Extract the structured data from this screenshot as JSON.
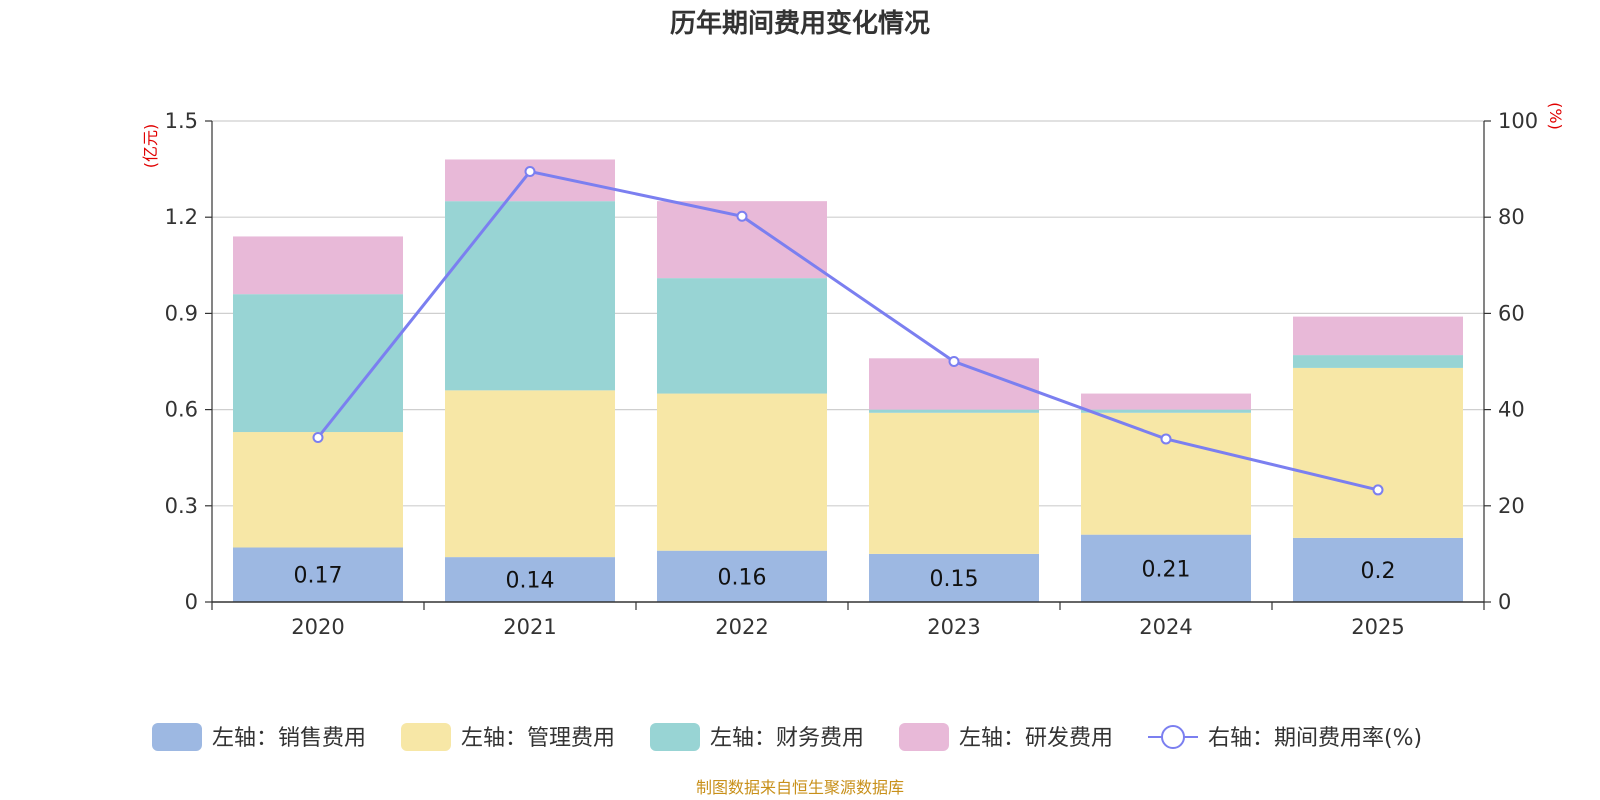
{
  "chart_data": {
    "type": "bar",
    "title": "历年期间费用变化情况",
    "categories": [
      "2020",
      "2021",
      "2022",
      "2023",
      "2024",
      "2025"
    ],
    "left_axis": {
      "unit": "(亿元)",
      "ylim": [
        0,
        1.5
      ],
      "ticks": [
        "0",
        "0.3",
        "0.6",
        "0.9",
        "1.2",
        "1.5"
      ],
      "tick_values": [
        0,
        0.3,
        0.6,
        0.9,
        1.2,
        1.5
      ]
    },
    "right_axis": {
      "unit": "(%)",
      "ylim": [
        0,
        100
      ],
      "ticks": [
        "0",
        "20",
        "40",
        "60",
        "80",
        "100"
      ],
      "tick_values": [
        0,
        20,
        40,
        60,
        80,
        100
      ]
    },
    "series": [
      {
        "name": "左轴：销售费用",
        "type": "bar",
        "axis": "left",
        "color": "#9db8e2",
        "values": [
          0.17,
          0.14,
          0.16,
          0.15,
          0.21,
          0.2
        ],
        "labels": [
          "0.17",
          "0.14",
          "0.16",
          "0.15",
          "0.21",
          "0.2"
        ]
      },
      {
        "name": "左轴：管理费用",
        "type": "bar",
        "axis": "left",
        "color": "#f7e7a6",
        "values": [
          0.36,
          0.52,
          0.49,
          0.44,
          0.38,
          0.53
        ]
      },
      {
        "name": "左轴：财务费用",
        "type": "bar",
        "axis": "left",
        "color": "#98d4d4",
        "values": [
          0.43,
          0.59,
          0.36,
          0.01,
          0.01,
          0.04
        ]
      },
      {
        "name": "左轴：研发费用",
        "type": "bar",
        "axis": "left",
        "color": "#e8b9d8",
        "values": [
          0.18,
          0.13,
          0.24,
          0.16,
          0.05,
          0.12
        ]
      },
      {
        "name": "右轴：期间费用率(%)",
        "type": "line",
        "axis": "right",
        "color": "#7b7ff0",
        "values": [
          34.2,
          89.5,
          80.2,
          50,
          33.9,
          23.3
        ]
      }
    ],
    "source": "制图数据来自恒生聚源数据库"
  }
}
